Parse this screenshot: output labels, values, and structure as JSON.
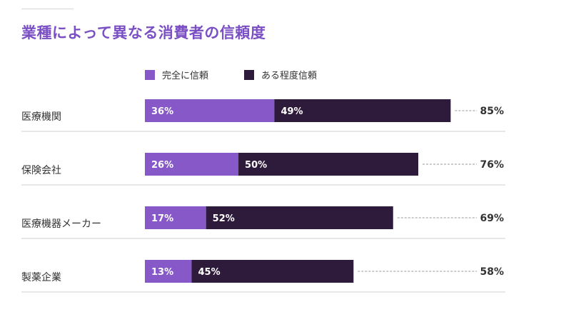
{
  "title": "業種によって異なる消費者の信頼度",
  "colors": {
    "complete": "#8658c8",
    "some": "#2e1a3a",
    "dash": "#9a9a9a",
    "divider": "#cfcfcf"
  },
  "legend": {
    "complete_label": "完全に信頼",
    "some_label": "ある程度信頼"
  },
  "chart_data": {
    "type": "bar",
    "orientation": "horizontal",
    "stacked": true,
    "title": "業種によって異なる消費者の信頼度",
    "categories": [
      "医療機関",
      "保険会社",
      "医療機器メーカー",
      "製薬企業"
    ],
    "series": [
      {
        "name": "完全に信頼",
        "values": [
          36,
          26,
          17,
          13
        ]
      },
      {
        "name": "ある程度信頼",
        "values": [
          49,
          50,
          52,
          45
        ]
      }
    ],
    "totals": [
      85,
      76,
      69,
      58
    ],
    "value_suffix": "%",
    "xlim": [
      0,
      100
    ],
    "grid": false,
    "legend_position": "top"
  }
}
